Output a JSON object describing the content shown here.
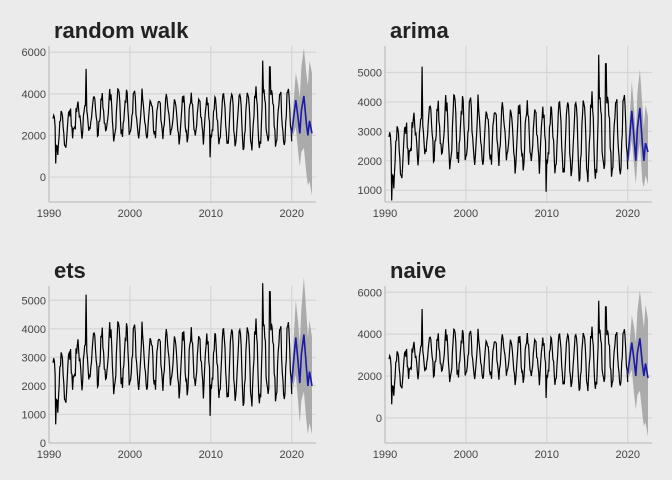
{
  "colors": {
    "background": "#ebebeb",
    "grid": "#d6d6d6",
    "history_line": "#000000",
    "forecast_line": "#1a1aa6",
    "interval_band": "#a0a0a0"
  },
  "chart_data": [
    {
      "type": "line",
      "title": "random walk",
      "xlim": [
        1990,
        2023
      ],
      "ylim": [
        -1200,
        6300
      ],
      "x_ticks": [
        1990,
        2000,
        2010,
        2020
      ],
      "y_ticks": [
        0,
        2000,
        4000,
        6000
      ],
      "grid": true,
      "legend": "none",
      "history": {
        "start": 1990.5,
        "end": 2020.0
      },
      "forecast": {
        "x": [
          2020.0,
          2020.5,
          2020.8,
          2021.0,
          2021.2,
          2021.5,
          2021.8,
          2022.0,
          2022.2,
          2022.5
        ],
        "mean": [
          2100,
          3700,
          2800,
          2100,
          3200,
          3900,
          2600,
          2000,
          2700,
          2100
        ],
        "lower": [
          1800,
          2400,
          1200,
          500,
          1200,
          1400,
          200,
          -400,
          -200,
          -900
        ],
        "upper": [
          2400,
          5000,
          4400,
          3800,
          5300,
          6200,
          5000,
          4400,
          5600,
          5000
        ]
      }
    },
    {
      "type": "line",
      "title": "arima",
      "xlim": [
        1990,
        2023
      ],
      "ylim": [
        600,
        5900
      ],
      "x_ticks": [
        1990,
        2000,
        2010,
        2020
      ],
      "y_ticks": [
        1000,
        2000,
        3000,
        4000,
        5000
      ],
      "grid": true,
      "legend": "none",
      "history": {
        "start": 1990.5,
        "end": 2020.0
      },
      "forecast": {
        "x": [
          2020.0,
          2020.5,
          2020.8,
          2021.0,
          2021.2,
          2021.5,
          2021.8,
          2022.0,
          2022.2,
          2022.5
        ],
        "mean": [
          2000,
          3700,
          2700,
          2000,
          3100,
          3800,
          2600,
          2000,
          2600,
          2300
        ],
        "lower": [
          1700,
          2700,
          1800,
          1200,
          2000,
          2600,
          1300,
          1100,
          1500,
          1200
        ],
        "upper": [
          2300,
          4700,
          3700,
          2900,
          4300,
          5100,
          3900,
          3100,
          3900,
          3500
        ]
      }
    },
    {
      "type": "line",
      "title": "ets",
      "xlim": [
        1990,
        2023
      ],
      "ylim": [
        0,
        5500
      ],
      "x_ticks": [
        1990,
        2000,
        2010,
        2020
      ],
      "y_ticks": [
        0,
        1000,
        2000,
        3000,
        4000,
        5000
      ],
      "grid": true,
      "legend": "none",
      "history": {
        "start": 1990.5,
        "end": 2020.0
      },
      "forecast": {
        "x": [
          2020.0,
          2020.5,
          2020.8,
          2021.0,
          2021.2,
          2021.5,
          2021.8,
          2022.0,
          2022.2,
          2022.5
        ],
        "mean": [
          2100,
          3700,
          2800,
          2100,
          3100,
          3800,
          2700,
          2000,
          2500,
          2000
        ],
        "lower": [
          1700,
          2400,
          1400,
          700,
          1500,
          1800,
          800,
          300,
          700,
          300
        ],
        "upper": [
          2500,
          5000,
          4200,
          3500,
          4700,
          5800,
          4600,
          3700,
          4300,
          3700
        ]
      }
    },
    {
      "type": "line",
      "title": "naive",
      "xlim": [
        1990,
        2023
      ],
      "ylim": [
        -1200,
        6300
      ],
      "x_ticks": [
        1990,
        2000,
        2010,
        2020
      ],
      "y_ticks": [
        0,
        2000,
        4000,
        6000
      ],
      "grid": true,
      "legend": "none",
      "history": {
        "start": 1990.5,
        "end": 2020.0
      },
      "forecast": {
        "x": [
          2020.0,
          2020.5,
          2020.8,
          2021.0,
          2021.2,
          2021.5,
          2021.8,
          2022.0,
          2022.2,
          2022.5
        ],
        "mean": [
          2100,
          3600,
          2700,
          2000,
          3100,
          3800,
          2600,
          2000,
          2600,
          1900
        ],
        "lower": [
          1800,
          2300,
          1100,
          400,
          1100,
          1300,
          200,
          -400,
          -200,
          -900
        ],
        "upper": [
          2400,
          4900,
          4300,
          3600,
          5100,
          6100,
          5000,
          4300,
          5400,
          4700
        ]
      }
    }
  ]
}
